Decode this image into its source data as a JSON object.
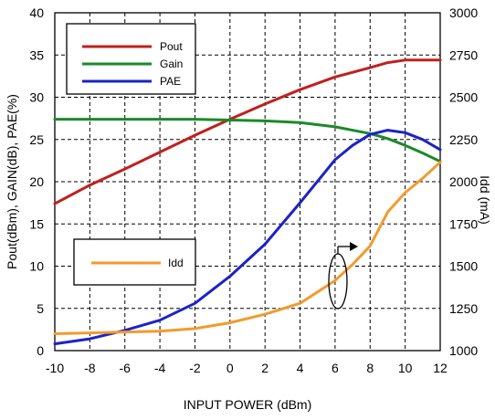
{
  "chart_data": {
    "type": "line",
    "xlabel": "INPUT POWER (dBm)",
    "ylabel_left": "Pout(dBm), GAIN(dB), PAE(%)",
    "ylabel_right": "Idd (mA)",
    "xlim": [
      -10,
      12
    ],
    "xticks": [
      -10,
      -8,
      -6,
      -4,
      -2,
      0,
      2,
      4,
      6,
      8,
      10,
      12
    ],
    "ylim_left": [
      0,
      40
    ],
    "yticks_left": [
      0,
      5,
      10,
      15,
      20,
      25,
      30,
      35,
      40
    ],
    "ylim_right": [
      1000,
      3000
    ],
    "yticks_right": [
      1000,
      1250,
      1500,
      1750,
      2000,
      2250,
      2500,
      2750,
      3000
    ],
    "grid": true,
    "grid_style": "dashed",
    "legend_top": [
      "Pout",
      "Gain",
      "PAE"
    ],
    "legend_bottom": [
      "Idd"
    ],
    "series": [
      {
        "name": "Pout",
        "axis": "left",
        "color": "#c0201e",
        "x": [
          -10,
          -8,
          -6,
          -4,
          -2,
          0,
          2,
          4,
          6,
          8,
          9,
          10,
          11,
          12
        ],
        "y": [
          17.4,
          19.6,
          21.5,
          23.5,
          25.5,
          27.4,
          29.2,
          30.9,
          32.4,
          33.5,
          34.1,
          34.4,
          34.4,
          34.4
        ]
      },
      {
        "name": "Gain",
        "axis": "left",
        "color": "#1a8a2a",
        "x": [
          -10,
          -8,
          -6,
          -4,
          -2,
          0,
          2,
          4,
          6,
          8,
          9,
          10,
          11,
          12
        ],
        "y": [
          27.4,
          27.4,
          27.4,
          27.4,
          27.4,
          27.3,
          27.2,
          27.0,
          26.5,
          25.7,
          25.1,
          24.3,
          23.4,
          22.4
        ]
      },
      {
        "name": "PAE",
        "axis": "left",
        "color": "#1a23c8",
        "x": [
          -10,
          -8,
          -6,
          -4,
          -2,
          0,
          2,
          4,
          6,
          7,
          8,
          9,
          10,
          11,
          12
        ],
        "y": [
          0.8,
          1.4,
          2.4,
          3.6,
          5.6,
          8.8,
          12.6,
          17.5,
          22.6,
          24.3,
          25.6,
          26.1,
          25.8,
          25.0,
          23.8
        ]
      },
      {
        "name": "Idd",
        "axis": "right",
        "color": "#f39a2d",
        "x": [
          -10,
          -8,
          -6,
          -4,
          -2,
          0,
          2,
          4,
          6,
          7,
          8,
          9,
          10,
          11,
          12
        ],
        "y": [
          1100,
          1105,
          1110,
          1115,
          1130,
          1165,
          1215,
          1280,
          1415,
          1510,
          1620,
          1820,
          1935,
          2020,
          2115
        ]
      }
    ]
  }
}
